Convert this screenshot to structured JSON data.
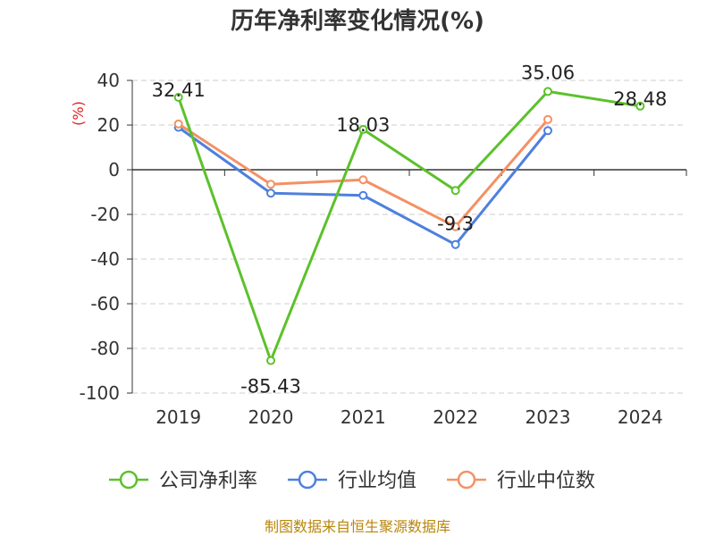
{
  "chart_data": {
    "type": "line",
    "title": "历年净利率变化情况(%)",
    "ylabel": "(%)",
    "xlabel": "",
    "categories": [
      "2019",
      "2020",
      "2021",
      "2022",
      "2023",
      "2024"
    ],
    "ylim": [
      -100,
      40
    ],
    "yticks": [
      "40",
      "20",
      "0",
      "-20",
      "-40",
      "-60",
      "-80",
      "-100"
    ],
    "grid": true,
    "legend_position": "bottom",
    "series": [
      {
        "name": "公司净利率",
        "values": [
          32.41,
          -85.43,
          18.03,
          -9.3,
          35.06,
          28.48
        ],
        "color": "#5cc12b",
        "labels": [
          "32.41",
          "-85.43",
          "18.03",
          "-9.3",
          "35.06",
          "28.48"
        ]
      },
      {
        "name": "行业均值",
        "values": [
          19,
          -10.5,
          -11.5,
          -33.5,
          17.5,
          null
        ],
        "color": "#4e80dd"
      },
      {
        "name": "行业中位数",
        "values": [
          20.5,
          -6.5,
          -4.5,
          -25.5,
          22.5,
          null
        ],
        "color": "#f39165"
      }
    ]
  },
  "source_text": "制图数据来自恒生聚源数据库",
  "colors": {
    "unit": "#e32020",
    "source": "#b8860b",
    "grid": "#cccccc",
    "axis": "#333333"
  }
}
